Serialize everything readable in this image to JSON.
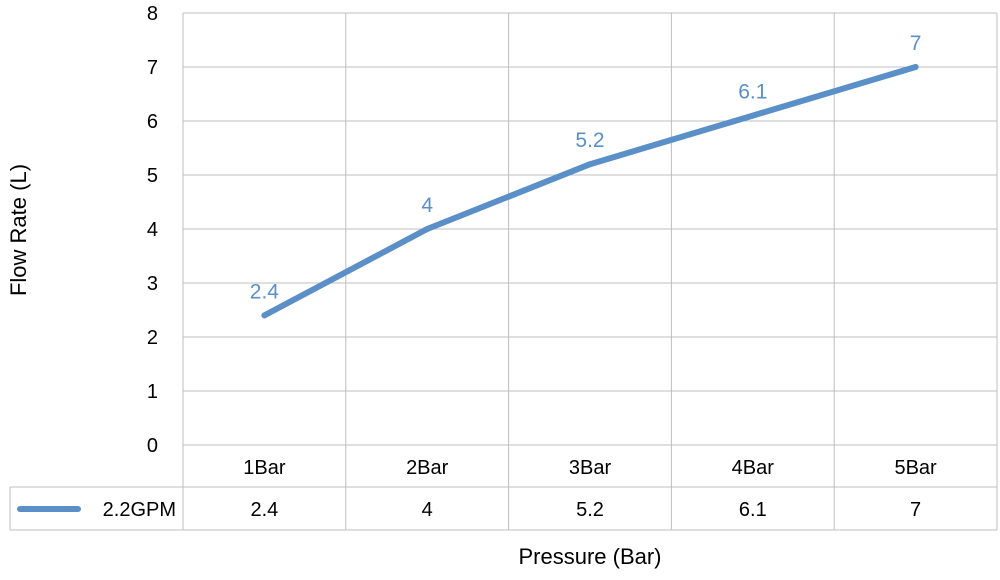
{
  "chart_data": {
    "type": "line",
    "title": "",
    "xlabel": "Pressure (Bar)",
    "ylabel": "Flow Rate (L)",
    "categories": [
      "1Bar",
      "2Bar",
      "3Bar",
      "4Bar",
      "5Bar"
    ],
    "series": [
      {
        "name": "2.2GPM",
        "values": [
          2.4,
          4,
          5.2,
          6.1,
          7
        ],
        "color": "#5b8fc8"
      }
    ],
    "ylim": [
      0,
      8
    ],
    "yticks": [
      0,
      1,
      2,
      3,
      4,
      5,
      6,
      7,
      8
    ],
    "grid": true,
    "data_table": true,
    "data_labels": true,
    "colors": {
      "line": "#5b8fc8",
      "label": "#5b8fc8",
      "grid": "#bfbfbf",
      "text": "#000000"
    }
  }
}
